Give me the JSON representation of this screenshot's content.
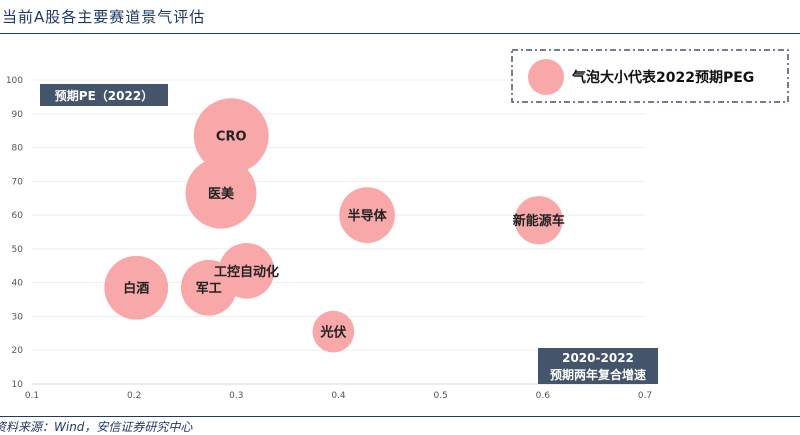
{
  "title": "当前A股各主要赛道景气评估",
  "source": "资料来源：Wind，安信证券研究中心",
  "chart_data": {
    "type": "scatter",
    "xlabel": "2020-2022\n预期两年复合增速",
    "ylabel": "预期PE（2022）",
    "xlim": [
      0.1,
      0.7
    ],
    "ylim": [
      10,
      100
    ],
    "xticks": [
      0.1,
      0.2,
      0.3,
      0.4,
      0.5,
      0.6,
      0.7
    ],
    "yticks": [
      10,
      20,
      30,
      40,
      50,
      60,
      70,
      80,
      90,
      100
    ],
    "legend": "气泡大小代表2022预期PEG",
    "legend_position": "top-right",
    "bubble_color": "#f8a8a8",
    "points": [
      {
        "label": "CRO",
        "x": 0.295,
        "y": 83.5,
        "size": 2.9
      },
      {
        "label": "医美",
        "x": 0.285,
        "y": 66.5,
        "size": 2.6
      },
      {
        "label": "半导体",
        "x": 0.428,
        "y": 60,
        "size": 1.6
      },
      {
        "label": "新能源车",
        "x": 0.596,
        "y": 58.5,
        "size": 1.2
      },
      {
        "label": "工控自动化",
        "x": 0.31,
        "y": 43.5,
        "size": 1.6
      },
      {
        "label": "白酒",
        "x": 0.202,
        "y": 38.5,
        "size": 2.1
      },
      {
        "label": "军工",
        "x": 0.273,
        "y": 38.5,
        "size": 1.6
      },
      {
        "label": "光伏",
        "x": 0.395,
        "y": 25.5,
        "size": 0.9
      }
    ]
  }
}
